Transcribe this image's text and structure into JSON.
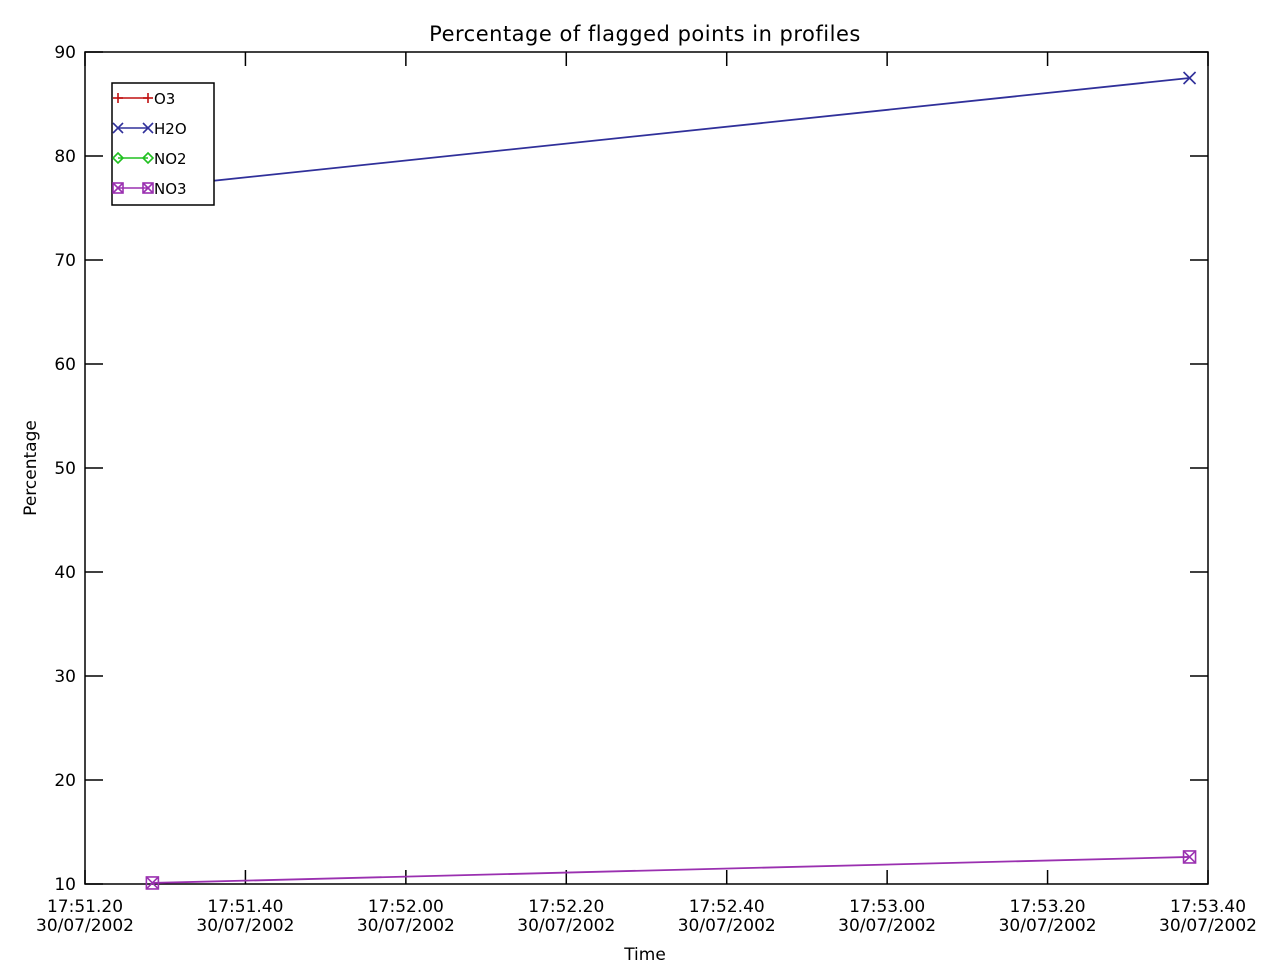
{
  "chart_data": {
    "type": "line",
    "title": "Percentage of flagged points in profiles",
    "xlabel": "Time",
    "ylabel": "Percentage",
    "ylim": [
      10,
      90
    ],
    "y_ticks": [
      10,
      20,
      30,
      40,
      50,
      60,
      70,
      80,
      90
    ],
    "xlim_seconds": [
      0,
      140
    ],
    "x_ticks": [
      {
        "t": 0,
        "time": "17:51.20",
        "date": "30/07/2002"
      },
      {
        "t": 20,
        "time": "17:51.40",
        "date": "30/07/2002"
      },
      {
        "t": 40,
        "time": "17:52.00",
        "date": "30/07/2002"
      },
      {
        "t": 60,
        "time": "17:52.20",
        "date": "30/07/2002"
      },
      {
        "t": 80,
        "time": "17:52.40",
        "date": "30/07/2002"
      },
      {
        "t": 100,
        "time": "17:53.00",
        "date": "30/07/2002"
      },
      {
        "t": 120,
        "time": "17:53.20",
        "date": "30/07/2002"
      },
      {
        "t": 140,
        "time": "17:53.40",
        "date": "30/07/2002"
      }
    ],
    "x": [
      "17:51.28",
      "17:53.39"
    ],
    "x_seconds": [
      8.4,
      137.7
    ],
    "series": [
      {
        "name": "O3",
        "values": [
          null,
          null
        ],
        "color": "#c01010",
        "marker": "plus"
      },
      {
        "name": "H2O",
        "values": [
          77.0,
          87.5
        ],
        "color": "#30309a",
        "marker": "cross"
      },
      {
        "name": "NO2",
        "values": [
          null,
          null
        ],
        "color": "#20c020",
        "marker": "diamond"
      },
      {
        "name": "NO3",
        "values": [
          10.1,
          12.6
        ],
        "color": "#9a30b0",
        "marker": "square-cross"
      }
    ],
    "legend_position": "top-left",
    "grid": false
  }
}
